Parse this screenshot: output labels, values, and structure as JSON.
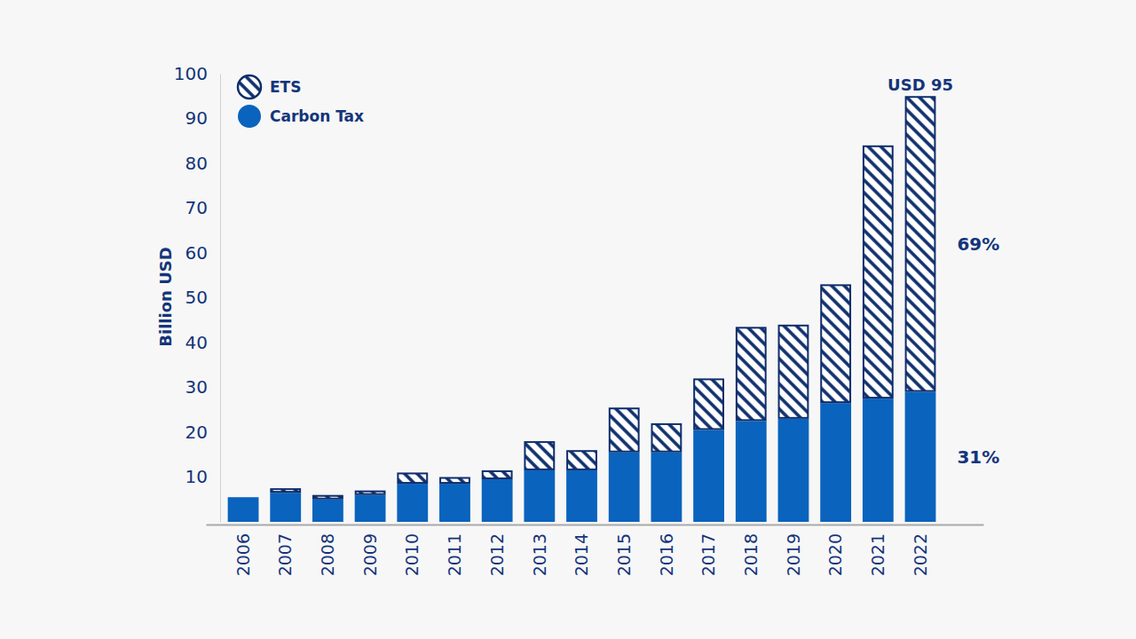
{
  "chart_data": {
    "type": "bar",
    "stacked": true,
    "y_label": "Billion USD",
    "categories": [
      "2006",
      "2007",
      "2008",
      "2009",
      "2010",
      "2011",
      "2012",
      "2013",
      "2014",
      "2015",
      "2016",
      "2017",
      "2018",
      "2019",
      "2020",
      "2021",
      "2022"
    ],
    "series": [
      {
        "name": "Carbon Tax",
        "color": "#0a63bd",
        "values": [
          5.5,
          6.5,
          5,
          6,
          8.5,
          8.5,
          9.5,
          11.5,
          11.5,
          15.5,
          15.5,
          20.5,
          22.5,
          23,
          26.5,
          27.5,
          29
        ]
      },
      {
        "name": "ETS",
        "color": "#0d2d6c",
        "values": [
          0,
          1,
          1,
          1,
          2.5,
          1.5,
          2,
          6.5,
          4.5,
          10,
          6.5,
          11.5,
          21,
          21,
          26.5,
          56.5,
          66
        ]
      }
    ],
    "ylim": [
      0,
      100
    ],
    "yticks": [
      10,
      20,
      30,
      40,
      50,
      60,
      70,
      80,
      90,
      100
    ],
    "grid": false,
    "legend": "upper left",
    "data_labels": false,
    "annotations": [
      "USD 95",
      "69%",
      "31%"
    ]
  }
}
